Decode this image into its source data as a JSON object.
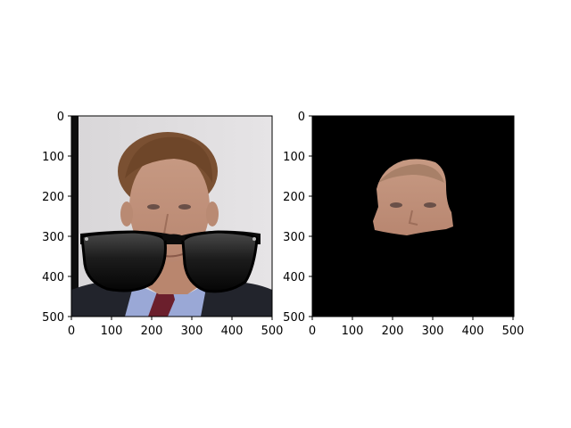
{
  "figure": {
    "panels": [
      {
        "name": "face-with-sunglasses",
        "content": "photo of a man in suit and tie wearing black sunglasses overlay",
        "x_ticks": [
          "0",
          "100",
          "200",
          "300",
          "400",
          "500"
        ],
        "y_ticks": [
          "0",
          "100",
          "200",
          "300",
          "400",
          "500"
        ]
      },
      {
        "name": "segmented-face",
        "content": "segmented face region on black background",
        "x_ticks": [
          "0",
          "100",
          "200",
          "300",
          "400",
          "500"
        ],
        "y_ticks": [
          "0",
          "100",
          "200",
          "300",
          "400",
          "500"
        ]
      }
    ]
  }
}
